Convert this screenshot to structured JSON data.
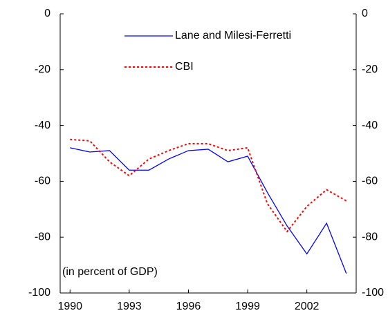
{
  "chart_data": {
    "type": "line",
    "categories": [
      "1990",
      null,
      null,
      "1993",
      null,
      null,
      "1996",
      null,
      null,
      "1999",
      null,
      null,
      "2002",
      null,
      null
    ],
    "series": [
      {
        "name": "Lane and Milesi-Ferretti",
        "color": "#0000ff",
        "dash": false,
        "values": [
          -48,
          -49.5,
          -49,
          -56,
          -56,
          -52,
          -49,
          -48.5,
          -53,
          -51,
          -64,
          -76,
          -86,
          -75,
          -93
        ]
      },
      {
        "name": "CBI",
        "color": "#ff0000",
        "dash": true,
        "values": [
          -45,
          -45.5,
          -53,
          -58,
          -52,
          -49,
          -46.5,
          -46.5,
          -49,
          -48,
          -68,
          -78,
          -69,
          -63,
          -67
        ]
      }
    ],
    "ylim": [
      -100,
      0
    ],
    "yticks": [
      -100,
      -80,
      -60,
      -40,
      -20,
      0
    ],
    "y2lim": [
      -100,
      0
    ],
    "y2ticks": [
      -100,
      -80,
      -60,
      -40,
      -20,
      0
    ],
    "annotation": "(in percent of GDP)"
  }
}
